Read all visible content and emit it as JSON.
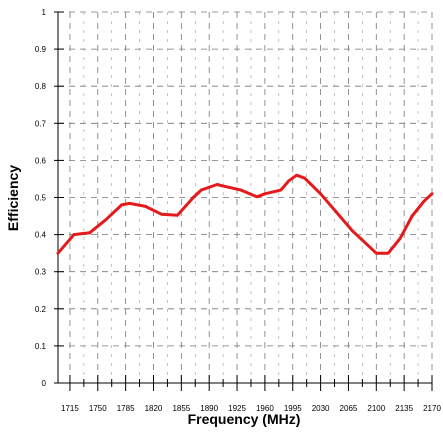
{
  "chart_data": {
    "type": "line",
    "title": "",
    "xlabel": "Frequency (MHz)",
    "ylabel": "Efficiency",
    "xlim": [
      1700,
      2170
    ],
    "ylim": [
      0,
      1
    ],
    "x_ticks": [
      1715,
      1750,
      1785,
      1820,
      1855,
      1890,
      1925,
      1960,
      1995,
      2030,
      2065,
      2100,
      2135,
      2170
    ],
    "y_ticks": [
      "0",
      "0.1",
      "0.2",
      "0.3",
      "0.4",
      "0.5",
      "0.6",
      "0.7",
      "0.8",
      "0.9",
      "1"
    ],
    "y_tick_values": [
      0,
      0.1,
      0.2,
      0.3,
      0.4,
      0.5,
      0.6,
      0.7,
      0.8,
      0.9,
      1
    ],
    "grid": true,
    "legend": "none",
    "series": [
      {
        "color": "#e41a1c",
        "x": [
          1700,
          1720,
          1740,
          1760,
          1780,
          1790,
          1810,
          1830,
          1850,
          1870,
          1880,
          1900,
          1910,
          1930,
          1950,
          1960,
          1980,
          1990,
          2000,
          2010,
          2030,
          2050,
          2070,
          2090,
          2100,
          2115,
          2130,
          2145,
          2160,
          2170
        ],
        "y": [
          0.35,
          0.4,
          0.405,
          0.44,
          0.48,
          0.484,
          0.476,
          0.455,
          0.452,
          0.5,
          0.52,
          0.535,
          0.53,
          0.52,
          0.502,
          0.51,
          0.52,
          0.545,
          0.56,
          0.552,
          0.51,
          0.46,
          0.41,
          0.37,
          0.35,
          0.35,
          0.39,
          0.45,
          0.49,
          0.51
        ]
      }
    ]
  }
}
